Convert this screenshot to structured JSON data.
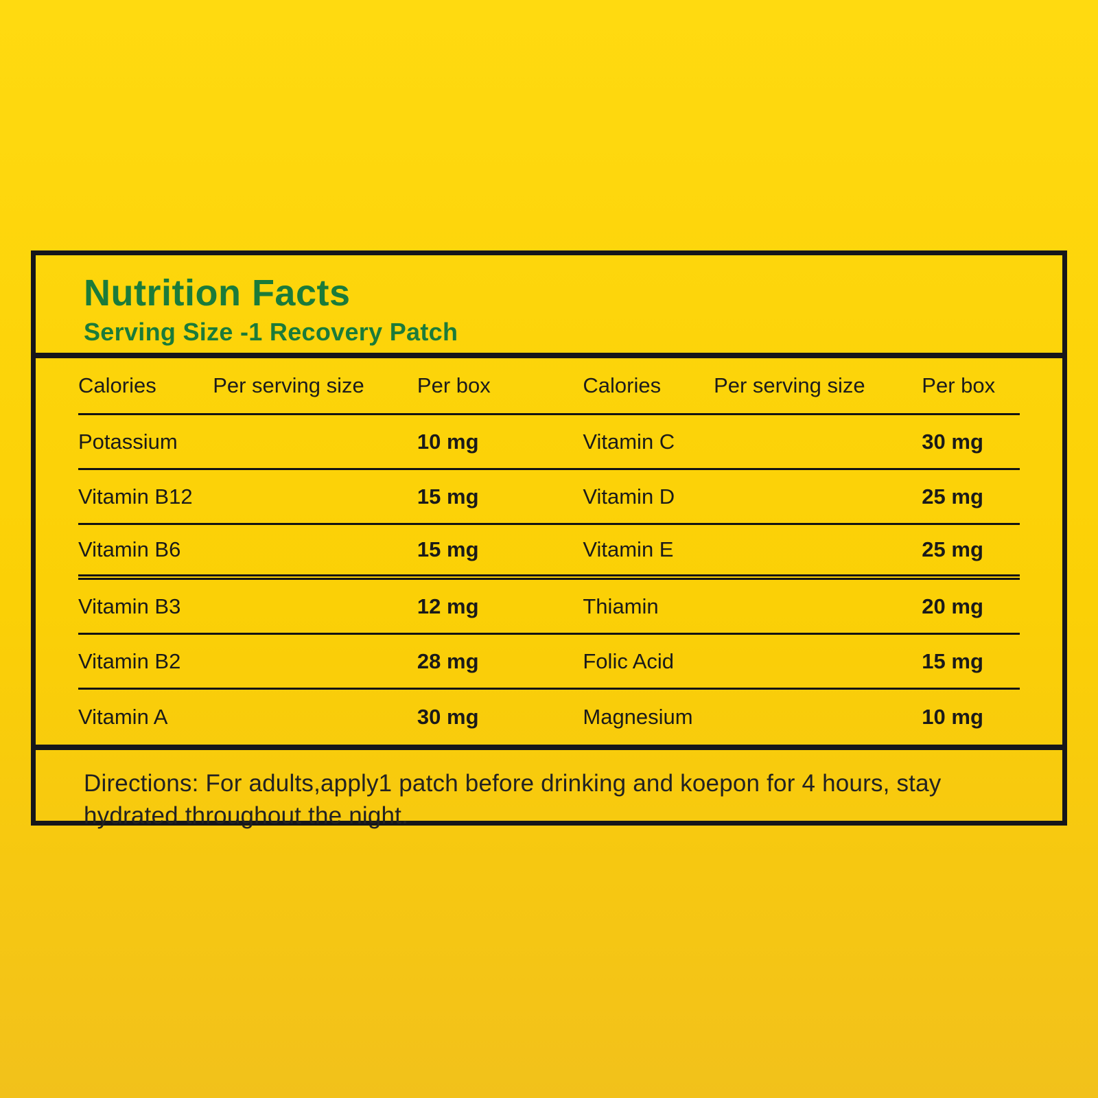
{
  "colors": {
    "background_yellow_top": "#FFDA10",
    "background_yellow_bottom": "#F2C11B",
    "title_green": "#1B7B3A",
    "border_black": "#16161a"
  },
  "panel": {
    "title": "Nutrition Facts",
    "subtitle": "Serving Size -1 Recovery Patch",
    "columns": {
      "c1": "Calories",
      "c2": "Per serving size",
      "c3": "Per box"
    },
    "rows_left": [
      {
        "name": "Potassium",
        "value": "10 mg"
      },
      {
        "name": "Vitamin B12",
        "value": "15 mg"
      },
      {
        "name": "Vitamin B6",
        "value": "15 mg"
      },
      {
        "name": "Vitamin B3",
        "value": "12 mg"
      },
      {
        "name": "Vitamin B2",
        "value": "28 mg"
      },
      {
        "name": "Vitamin A",
        "value": "30 mg"
      }
    ],
    "rows_right": [
      {
        "name": "Vitamin C",
        "value": "30 mg"
      },
      {
        "name": "Vitamin D",
        "value": "25 mg"
      },
      {
        "name": "Vitamin E",
        "value": "25 mg"
      },
      {
        "name": "Thiamin",
        "value": "20 mg"
      },
      {
        "name": "Folic Acid",
        "value": "15 mg"
      },
      {
        "name": "Magnesium",
        "value": "10 mg"
      }
    ],
    "directions": "Directions: For adults,apply1 patch before drinking and koepon for 4 hours, stay hydrated throughout the night."
  }
}
